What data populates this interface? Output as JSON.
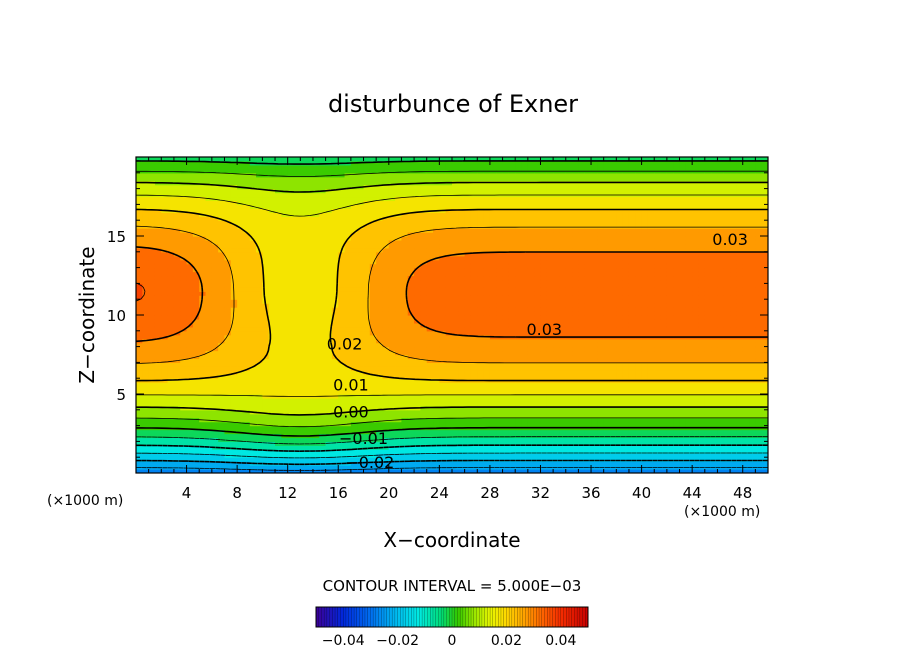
{
  "chart_data": {
    "type": "heatmap",
    "title": "disturbunce of Exner",
    "xlabel": "X−coordinate",
    "ylabel": "Z−coordinate",
    "x_unit_left": "(×1000 m)",
    "x_unit_right": "(×1000 m)",
    "xlim": [
      0,
      50
    ],
    "ylim": [
      0,
      20
    ],
    "x_ticks": [
      4,
      8,
      12,
      16,
      20,
      24,
      28,
      32,
      36,
      40,
      44,
      48
    ],
    "x_tick_labels": [
      "4",
      "8",
      "12",
      "16",
      "20",
      "24",
      "28",
      "32",
      "36",
      "40",
      "44",
      "48"
    ],
    "y_ticks": [
      5,
      10,
      15
    ],
    "y_tick_labels": [
      "5",
      "10",
      "15"
    ],
    "contour_interval_text": "CONTOUR INTERVAL = 5.000E−03",
    "contour_labels": [
      {
        "text": "0.03",
        "x": 47,
        "y": 14.8
      },
      {
        "text": "0.03",
        "x": 32.3,
        "y": 9.1
      },
      {
        "text": "0.02",
        "x": 16.5,
        "y": 8.2
      },
      {
        "text": "0.01",
        "x": 17,
        "y": 5.6
      },
      {
        "text": "0.00",
        "x": 17,
        "y": 3.9
      },
      {
        "text": "−0.01",
        "x": 18,
        "y": 2.2
      },
      {
        "text": "−0.02",
        "x": 18.5,
        "y": 0.7
      }
    ],
    "colorbar": {
      "min": -0.05,
      "max": 0.05,
      "tick_values": [
        -0.04,
        -0.02,
        0,
        0.02,
        0.04
      ],
      "tick_labels": [
        "−0.04",
        "−0.02",
        "0",
        "0.02",
        "0.04"
      ]
    }
  }
}
